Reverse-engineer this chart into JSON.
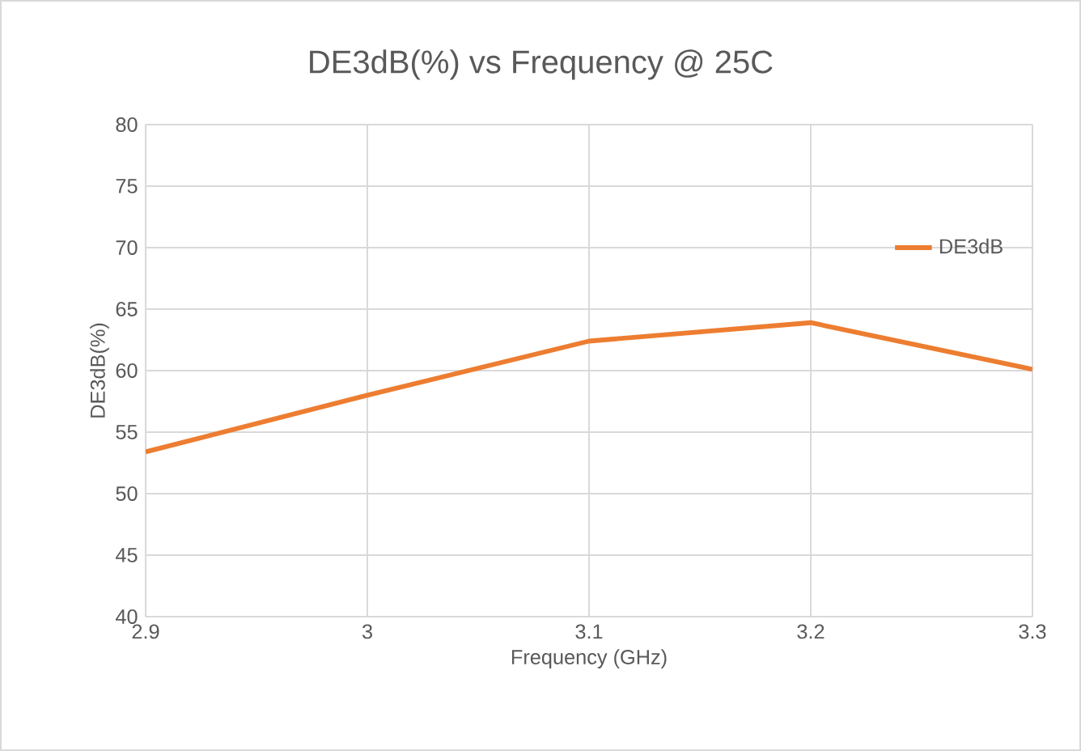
{
  "chart_data": {
    "type": "line",
    "title": "DE3dB(%) vs Frequency @ 25C",
    "xlabel": "Frequency (GHz)",
    "ylabel": "DE3dB(%)",
    "x": [
      2.9,
      3.0,
      3.1,
      3.2,
      3.3
    ],
    "series": [
      {
        "name": "DE3dB",
        "color": "#ed7d31",
        "values": [
          53.4,
          58.0,
          62.4,
          63.9,
          60.1
        ]
      }
    ],
    "xlim": [
      2.9,
      3.3
    ],
    "xticks": [
      2.9,
      3,
      3.1,
      3.2,
      3.3
    ],
    "ylim": [
      40,
      80
    ],
    "yticks": [
      40,
      45,
      50,
      55,
      60,
      65,
      70,
      75,
      80
    ],
    "grid": true,
    "legend": "right",
    "marker": "none",
    "line_style": "solid"
  }
}
